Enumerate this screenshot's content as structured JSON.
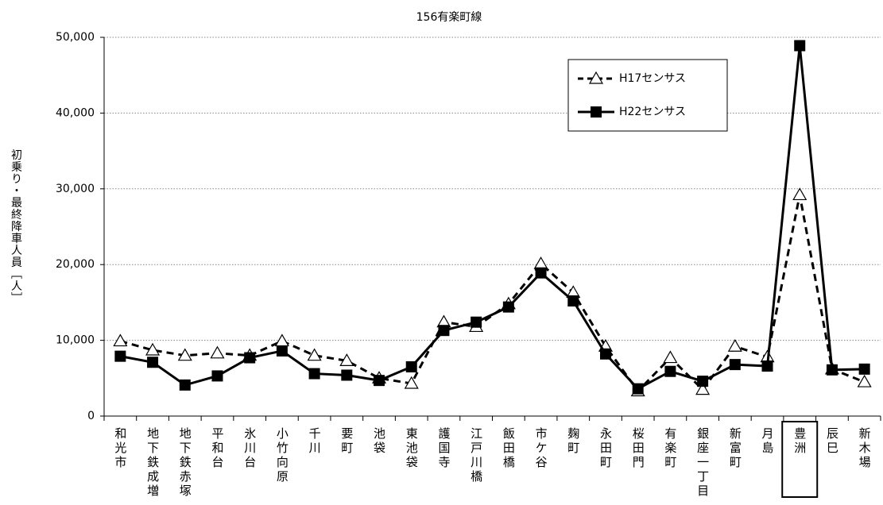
{
  "chart_data": {
    "type": "line",
    "title": "156有楽町線",
    "y_label": "初乗り・最終降車人員［人］",
    "categories": [
      "和光市",
      "地下鉄成増",
      "地下鉄赤塚",
      "平和台",
      "氷川台",
      "小竹向原",
      "千川",
      "要町",
      "池袋",
      "東池袋",
      "護国寺",
      "江戸川橋",
      "飯田橋",
      "市ケ谷",
      "麹町",
      "永田町",
      "桜田門",
      "有楽町",
      "銀座一丁目",
      "新富町",
      "月島",
      "豊洲",
      "辰巳",
      "新木場"
    ],
    "series": [
      {
        "name": "H17センサス",
        "color": "#000000",
        "line_style": "dashed",
        "marker": "triangle",
        "values": [
          9900,
          8700,
          8000,
          8300,
          8000,
          9900,
          8000,
          7300,
          5000,
          4300,
          12400,
          11800,
          14800,
          20100,
          16300,
          9200,
          3300,
          7700,
          3500,
          9200,
          7800,
          29200,
          6200,
          4500
        ]
      },
      {
        "name": "H22センサス",
        "color": "#000000",
        "line_style": "solid",
        "marker": "square",
        "values": [
          7900,
          7100,
          4100,
          5300,
          7700,
          8600,
          5600,
          5400,
          4700,
          6500,
          11300,
          12400,
          14400,
          18900,
          15200,
          8200,
          3600,
          5900,
          4600,
          6800,
          6600,
          48900,
          6100,
          6200
        ]
      }
    ],
    "ylim": [
      0,
      50000
    ],
    "yticks": [
      0,
      {
        "value": 10000,
        "label": "10,000"
      },
      {
        "value": 20000,
        "label": "20,000"
      },
      {
        "value": 30000,
        "label": "30,000"
      },
      {
        "value": 40000,
        "label": "40,000"
      },
      {
        "value": 50000,
        "label": "50,000"
      }
    ],
    "grid": true,
    "legend": "upper right"
  }
}
